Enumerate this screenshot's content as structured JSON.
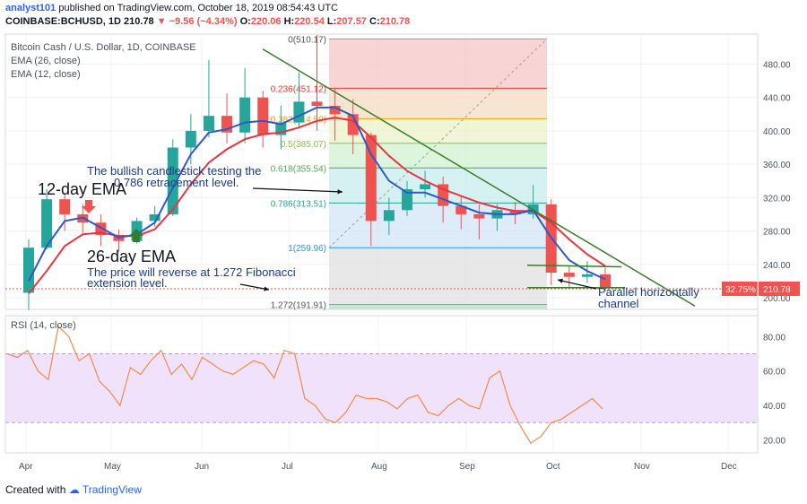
{
  "header": {
    "user": "analyst101",
    "published_text": "published on TradingView.com, October 18, 2019 08:54:43 UTC",
    "symbol": "COINBASE:BCHUSD, 1D",
    "last": "210.78",
    "arrow": "▼",
    "change": "−9.56 (−4.34%)",
    "o_label": "O:",
    "o_value": "220.06",
    "h_label": "H:",
    "h_value": "220.54",
    "l_label": "L:",
    "l_value": "207.57",
    "c_label": "C:",
    "c_value": "210.78"
  },
  "legend": {
    "title": "Bitcoin Cash / U.S. Dollar, 1D, COINBASE",
    "ema26": "EMA (26, close)",
    "ema12": "EMA (12, close)",
    "rsi": "RSI (14, close)"
  },
  "annotations": {
    "bullish_line1": "The bullish candlestick testing the",
    "bullish_line2": "0.786 retracement level.",
    "ema12": "12-day EMA",
    "ema26": "26-day EMA",
    "reverse_line1": "The price will reverse at 1.272 Fibonacci",
    "reverse_line2": "extension level.",
    "channel_line1": "Parallel horizontally",
    "channel_line2": "channel"
  },
  "badges": {
    "percent": "32.75%",
    "price": "210.78"
  },
  "footer": {
    "created_with": "Created with",
    "brand": "TradingView"
  },
  "colors": {
    "up": "#26a69a",
    "down": "#ef5350",
    "ema12": "#2f58c8",
    "ema26": "#e8343f",
    "trend": "#3a7d2a",
    "rsi": "#f28b46",
    "rsi_band": "#f1e2fb",
    "badge": "#ef5350"
  },
  "chart_data": {
    "type": "candlestick",
    "title": "Bitcoin Cash / U.S. Dollar, 1D, COINBASE",
    "x_ticks": [
      "Apr",
      "May",
      "Jun",
      "Jul",
      "Aug",
      "Sep",
      "Oct",
      "Nov",
      "Dec"
    ],
    "price_axis": {
      "ticks": [
        200,
        240,
        280,
        320,
        360,
        400,
        440,
        480
      ],
      "range": [
        186,
        516
      ]
    },
    "candles_weekly": [
      {
        "o": 206,
        "h": 270,
        "l": 185,
        "c": 260
      },
      {
        "o": 260,
        "h": 330,
        "l": 258,
        "c": 318
      },
      {
        "o": 318,
        "h": 326,
        "l": 280,
        "c": 300
      },
      {
        "o": 300,
        "h": 312,
        "l": 276,
        "c": 290
      },
      {
        "o": 290,
        "h": 300,
        "l": 262,
        "c": 275
      },
      {
        "o": 275,
        "h": 282,
        "l": 255,
        "c": 268
      },
      {
        "o": 268,
        "h": 296,
        "l": 265,
        "c": 292
      },
      {
        "o": 292,
        "h": 310,
        "l": 285,
        "c": 300
      },
      {
        "o": 300,
        "h": 390,
        "l": 298,
        "c": 380
      },
      {
        "o": 380,
        "h": 420,
        "l": 360,
        "c": 400
      },
      {
        "o": 400,
        "h": 485,
        "l": 392,
        "c": 418
      },
      {
        "o": 418,
        "h": 445,
        "l": 385,
        "c": 398
      },
      {
        "o": 398,
        "h": 475,
        "l": 385,
        "c": 440
      },
      {
        "o": 440,
        "h": 448,
        "l": 380,
        "c": 395
      },
      {
        "o": 395,
        "h": 430,
        "l": 378,
        "c": 410
      },
      {
        "o": 410,
        "h": 470,
        "l": 405,
        "c": 435
      },
      {
        "o": 435,
        "h": 515,
        "l": 400,
        "c": 430
      },
      {
        "o": 430,
        "h": 452,
        "l": 388,
        "c": 420
      },
      {
        "o": 420,
        "h": 438,
        "l": 372,
        "c": 395
      },
      {
        "o": 395,
        "h": 398,
        "l": 262,
        "c": 292
      },
      {
        "o": 292,
        "h": 320,
        "l": 275,
        "c": 305
      },
      {
        "o": 305,
        "h": 340,
        "l": 298,
        "c": 330
      },
      {
        "o": 330,
        "h": 352,
        "l": 320,
        "c": 336
      },
      {
        "o": 336,
        "h": 345,
        "l": 290,
        "c": 310
      },
      {
        "o": 310,
        "h": 322,
        "l": 282,
        "c": 300
      },
      {
        "o": 300,
        "h": 312,
        "l": 270,
        "c": 295
      },
      {
        "o": 295,
        "h": 312,
        "l": 280,
        "c": 305
      },
      {
        "o": 305,
        "h": 315,
        "l": 288,
        "c": 300
      },
      {
        "o": 300,
        "h": 335,
        "l": 295,
        "c": 312
      },
      {
        "o": 312,
        "h": 318,
        "l": 215,
        "c": 230
      },
      {
        "o": 230,
        "h": 238,
        "l": 212,
        "c": 225
      },
      {
        "o": 225,
        "h": 244,
        "l": 218,
        "c": 228
      },
      {
        "o": 228,
        "h": 236,
        "l": 208,
        "c": 211
      }
    ],
    "ema12": [
      220,
      262,
      292,
      296,
      284,
      272,
      276,
      290,
      332,
      372,
      398,
      402,
      410,
      412,
      408,
      418,
      428,
      428,
      418,
      372,
      340,
      326,
      326,
      318,
      310,
      302,
      300,
      300,
      305,
      272,
      245,
      232,
      222
    ],
    "ema26": [
      205,
      232,
      262,
      276,
      278,
      274,
      274,
      282,
      306,
      336,
      362,
      378,
      390,
      396,
      398,
      404,
      412,
      416,
      412,
      392,
      370,
      352,
      340,
      330,
      322,
      314,
      308,
      304,
      304,
      290,
      270,
      252,
      238
    ],
    "fibonacci": [
      {
        "level": "0",
        "price": "510.17"
      },
      {
        "level": "0.236",
        "price": "451.12"
      },
      {
        "level": "0.382",
        "price": "414.59"
      },
      {
        "level": "0.5",
        "price": "385.07"
      },
      {
        "level": "0.618",
        "price": "355.54"
      },
      {
        "level": "0.786",
        "price": "313.51"
      },
      {
        "level": "1",
        "price": "259.96"
      },
      {
        "level": "1.272",
        "price": "191.91"
      }
    ],
    "rsi": {
      "title": "RSI (14, close)",
      "ticks": [
        20,
        40,
        60,
        80
      ],
      "band": [
        30,
        70
      ],
      "values": [
        70,
        68,
        72,
        60,
        55,
        86,
        80,
        66,
        70,
        54,
        48,
        40,
        62,
        58,
        66,
        72,
        58,
        64,
        55,
        68,
        64,
        60,
        58,
        62,
        66,
        64,
        56,
        72,
        70,
        44,
        40,
        32,
        30,
        36,
        46,
        44,
        44,
        42,
        38,
        44,
        46,
        36,
        34,
        40,
        44,
        40,
        38,
        56,
        60,
        40,
        28,
        18,
        22,
        30,
        32,
        36,
        40,
        44,
        38
      ]
    }
  }
}
